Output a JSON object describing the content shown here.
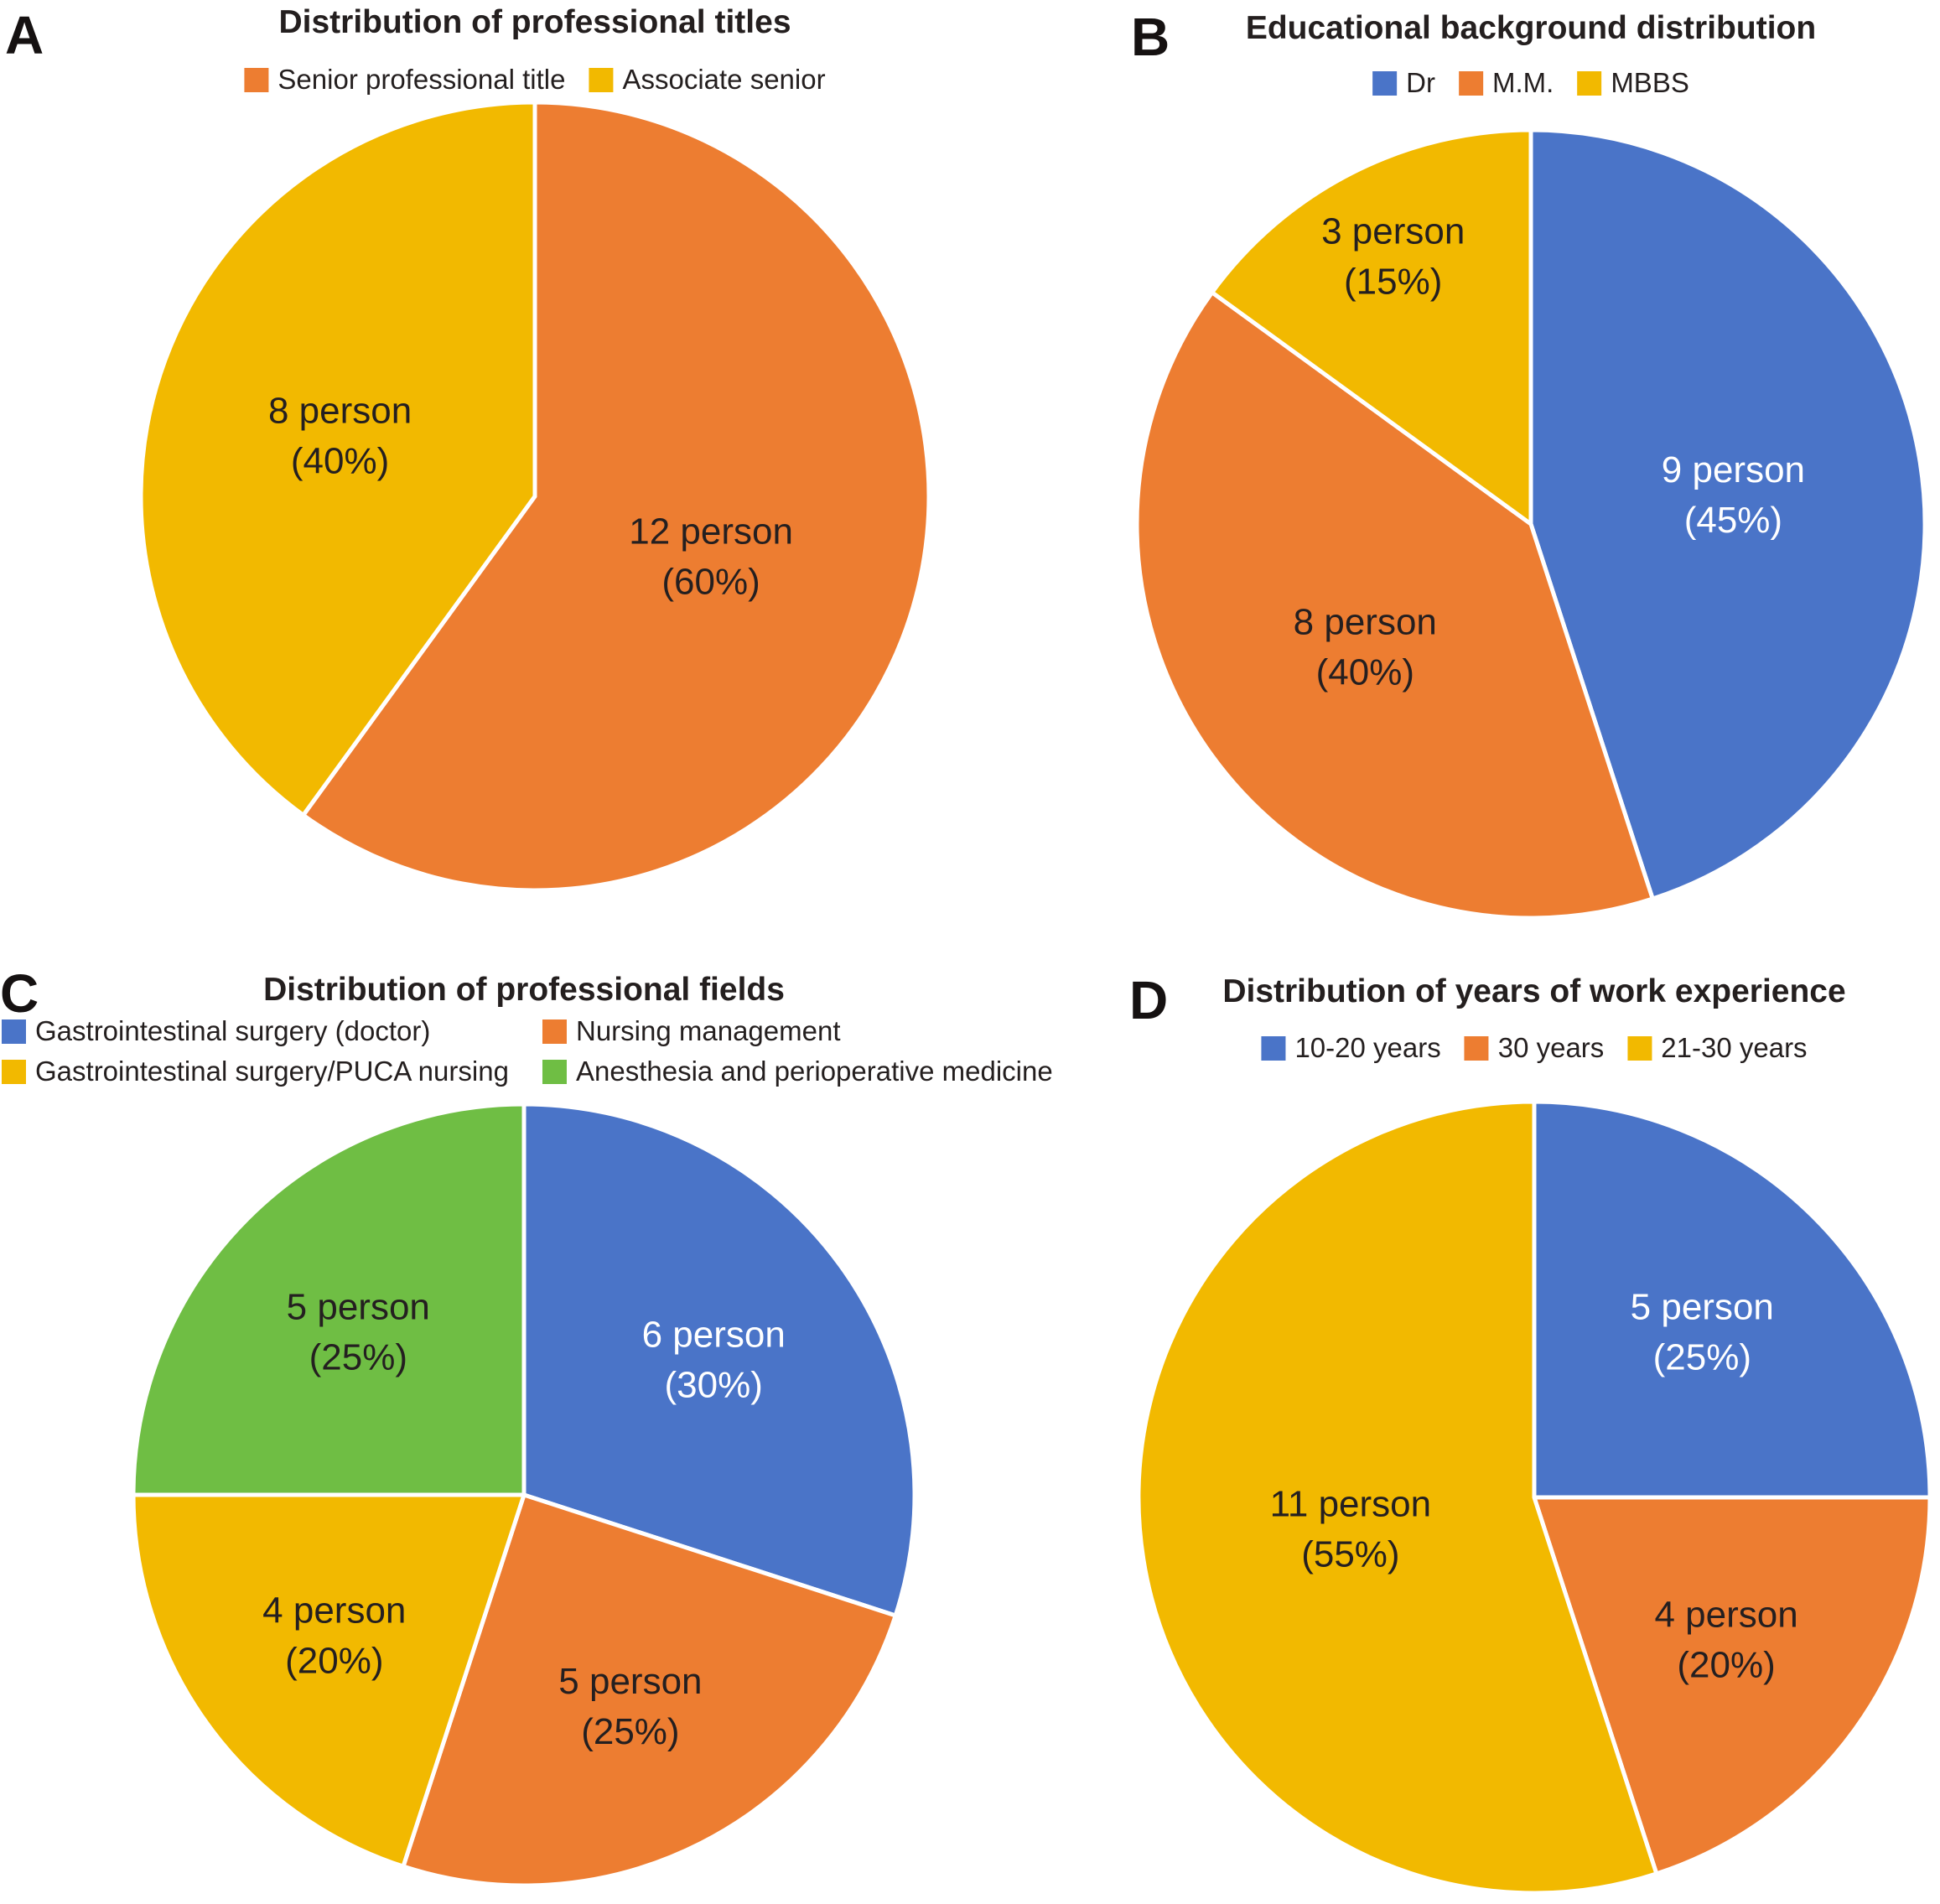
{
  "palette": {
    "blue": "#4A74C8",
    "orange": "#ED7D31",
    "yellow": "#F2B900",
    "green": "#6FBE44",
    "text_dark": "#241F20",
    "text_light": "#FFFFFF",
    "title": "#241F1F"
  },
  "panels": [
    {
      "letter": "A",
      "title": "Distribution of professional titles",
      "legend": [
        {
          "label": "Senior professional title",
          "color": "orange"
        },
        {
          "label": "Associate senior",
          "color": "yellow"
        }
      ]
    },
    {
      "letter": "B",
      "title": "Educational background distribution",
      "legend": [
        {
          "label": "Dr",
          "color": "blue"
        },
        {
          "label": "M.M.",
          "color": "orange"
        },
        {
          "label": "MBBS",
          "color": "yellow"
        }
      ]
    },
    {
      "letter": "C",
      "title": "Distribution of professional fields",
      "legend": [
        {
          "label": "Gastrointestinal surgery (doctor)",
          "color": "blue"
        },
        {
          "label": "Nursing management",
          "color": "orange"
        },
        {
          "label": "Gastrointestinal surgery/PUCA nursing",
          "color": "yellow"
        },
        {
          "label": "Anesthesia and perioperative medicine",
          "color": "green"
        }
      ]
    },
    {
      "letter": "D",
      "title": "Distribution of years of work experience",
      "legend": [
        {
          "label": "10-20 years",
          "color": "blue"
        },
        {
          "label": "30 years",
          "color": "orange"
        },
        {
          "label": "21-30 years",
          "color": "yellow"
        }
      ]
    }
  ],
  "chart_data": [
    {
      "type": "pie",
      "title": "Distribution of professional titles",
      "start_angle_deg": 0,
      "direction": "clockwise",
      "legend_position": "top",
      "slices": [
        {
          "label": "Senior professional title",
          "persons": 12,
          "percent": 60,
          "color": "orange",
          "text_line1": "12 person",
          "text_line2": "(60%)",
          "text_color": "dark"
        },
        {
          "label": "Associate senior",
          "persons": 8,
          "percent": 40,
          "color": "yellow",
          "text_line1": "8 person",
          "text_line2": "(40%)",
          "text_color": "dark"
        }
      ]
    },
    {
      "type": "pie",
      "title": "Educational background distribution",
      "start_angle_deg": 0,
      "direction": "clockwise",
      "legend_position": "top",
      "slices": [
        {
          "label": "Dr",
          "persons": 9,
          "percent": 45,
          "color": "blue",
          "text_line1": "9 person",
          "text_line2": "(45%)",
          "text_color": "light"
        },
        {
          "label": "M.M.",
          "persons": 8,
          "percent": 40,
          "color": "orange",
          "text_line1": "8 person",
          "text_line2": "(40%)",
          "text_color": "dark"
        },
        {
          "label": "MBBS",
          "persons": 3,
          "percent": 15,
          "color": "yellow",
          "text_line1": "3 person",
          "text_line2": "(15%)",
          "text_color": "dark"
        }
      ]
    },
    {
      "type": "pie",
      "title": "Distribution of professional fields",
      "start_angle_deg": 0,
      "direction": "clockwise",
      "legend_position": "top",
      "slices": [
        {
          "label": "Gastrointestinal surgery (doctor)",
          "persons": 6,
          "percent": 30,
          "color": "blue",
          "text_line1": "6 person",
          "text_line2": "(30%)",
          "text_color": "light"
        },
        {
          "label": "Nursing management",
          "persons": 5,
          "percent": 25,
          "color": "orange",
          "text_line1": "5 person",
          "text_line2": "(25%)",
          "text_color": "dark"
        },
        {
          "label": "Gastrointestinal surgery/PUCA nursing",
          "persons": 4,
          "percent": 20,
          "color": "yellow",
          "text_line1": "4 person",
          "text_line2": "(20%)",
          "text_color": "dark"
        },
        {
          "label": "Anesthesia and perioperative medicine",
          "persons": 5,
          "percent": 25,
          "color": "green",
          "text_line1": "5 person",
          "text_line2": "(25%)",
          "text_color": "dark"
        }
      ]
    },
    {
      "type": "pie",
      "title": "Distribution of years of work experience",
      "start_angle_deg": 0,
      "direction": "clockwise",
      "legend_position": "top",
      "slices": [
        {
          "label": "10-20 years",
          "persons": 5,
          "percent": 25,
          "color": "blue",
          "text_line1": "5 person",
          "text_line2": "(25%)",
          "text_color": "light"
        },
        {
          "label": "30 years",
          "persons": 4,
          "percent": 20,
          "color": "orange",
          "text_line1": "4 person",
          "text_line2": "(20%)",
          "text_color": "dark"
        },
        {
          "label": "21-30 years",
          "persons": 11,
          "percent": 55,
          "color": "yellow",
          "text_line1": "11 person",
          "text_line2": "(55%)",
          "text_color": "dark"
        }
      ]
    }
  ]
}
